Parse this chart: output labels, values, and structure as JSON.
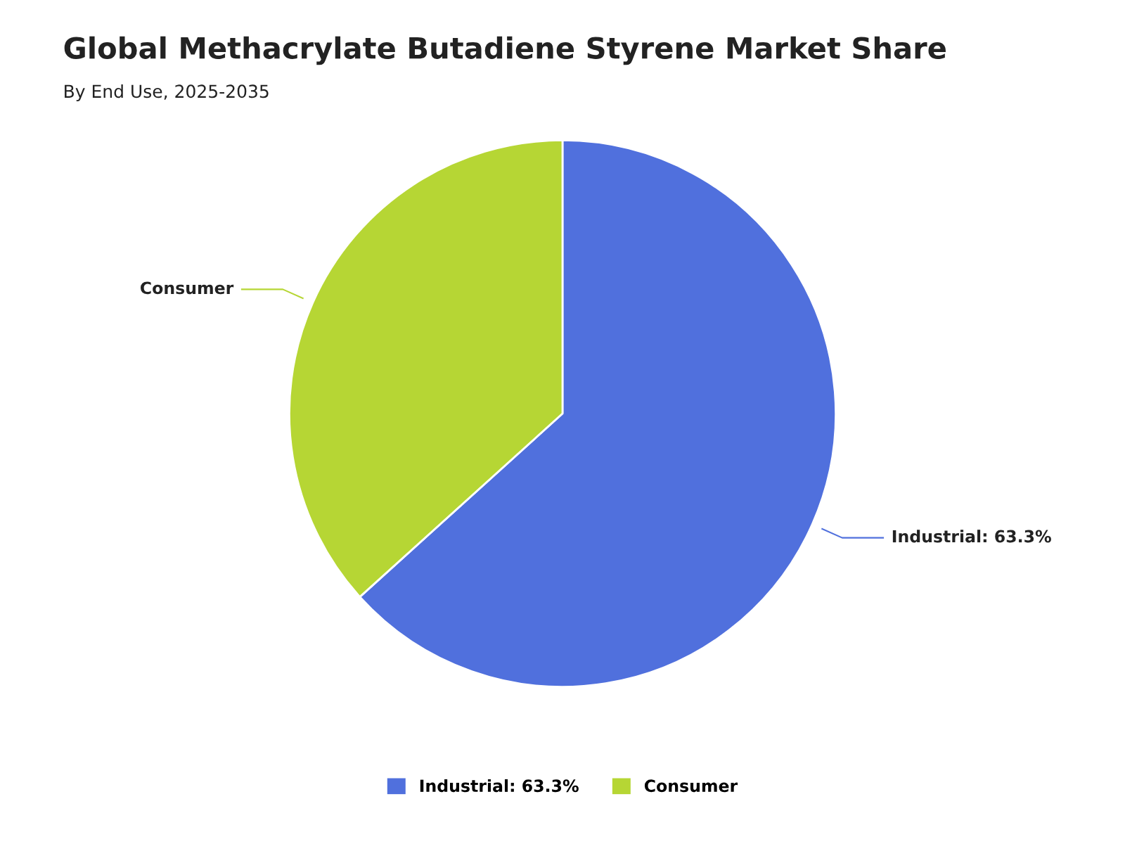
{
  "chart_data": {
    "type": "pie",
    "title": "Global Methacrylate Butadiene Styrene Market Share",
    "subtitle": "By End Use, 2025-2035",
    "categories": [
      "Industrial: 63.3%",
      "Consumer"
    ],
    "values": [
      63.3,
      36.7
    ],
    "colors": [
      "#5070dd",
      "#b6d634"
    ],
    "legend": "bottom"
  }
}
